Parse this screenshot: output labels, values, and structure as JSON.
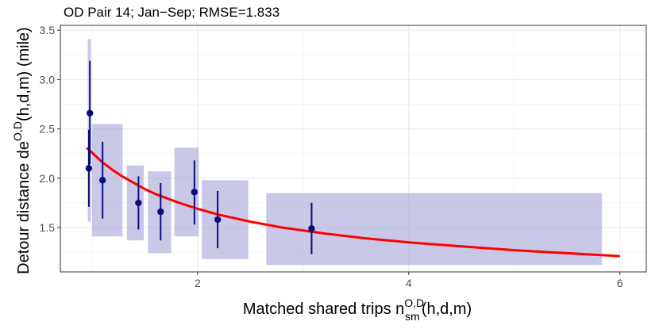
{
  "chart_data": {
    "type": "scatter",
    "title": "OD Pair 14; Jan−Sep; RMSE=1.833",
    "xlabel": {
      "main": "Matched shared trips n",
      "sup": "O,D",
      "sub": "sm",
      "suffix": "(h,d,m)"
    },
    "ylabel": {
      "main": "Detour distance de",
      "sup": "O,D",
      "suffix": "(h,d,m) (mile)"
    },
    "xlim": [
      0.7,
      6.25
    ],
    "ylim": [
      1.05,
      3.55
    ],
    "x_ticks": [
      2,
      4,
      6
    ],
    "x_tick_labels": [
      "2",
      "4",
      "6"
    ],
    "y_ticks": [
      1.5,
      2.0,
      2.5,
      3.0,
      3.5
    ],
    "y_tick_labels": [
      "1.5",
      "2.0",
      "2.5",
      "3.0",
      "3.5"
    ],
    "grid": true,
    "legend": "none",
    "points": [
      {
        "x": 0.97,
        "y": 2.1,
        "err_low": 1.71,
        "err_high": 2.49
      },
      {
        "x": 0.98,
        "y": 2.66,
        "err_low": 2.14,
        "err_high": 3.19
      },
      {
        "x": 1.1,
        "y": 1.98,
        "err_low": 1.59,
        "err_high": 2.37
      },
      {
        "x": 1.44,
        "y": 1.75,
        "err_low": 1.48,
        "err_high": 2.02
      },
      {
        "x": 1.65,
        "y": 1.66,
        "err_low": 1.37,
        "err_high": 1.95
      },
      {
        "x": 1.97,
        "y": 1.86,
        "err_low": 1.53,
        "err_high": 2.18
      },
      {
        "x": 2.19,
        "y": 1.58,
        "err_low": 1.29,
        "err_high": 1.87
      },
      {
        "x": 3.08,
        "y": 1.49,
        "err_low": 1.23,
        "err_high": 1.75
      }
    ],
    "boxes": [
      {
        "x0": 0.96,
        "x1": 0.99,
        "y0": 1.56,
        "y1": 3.41
      },
      {
        "x0": 1.0,
        "x1": 1.29,
        "y0": 1.41,
        "y1": 2.55
      },
      {
        "x0": 1.33,
        "x1": 1.49,
        "y0": 1.37,
        "y1": 2.13
      },
      {
        "x0": 1.53,
        "x1": 1.75,
        "y0": 1.24,
        "y1": 2.07
      },
      {
        "x0": 1.78,
        "x1": 2.01,
        "y0": 1.41,
        "y1": 2.31
      },
      {
        "x0": 2.04,
        "x1": 2.48,
        "y0": 1.18,
        "y1": 1.98
      },
      {
        "x0": 2.65,
        "x1": 5.83,
        "y0": 1.12,
        "y1": 1.85
      }
    ],
    "fit_curve": {
      "x": [
        0.95,
        1.0,
        1.1,
        1.2,
        1.3,
        1.4,
        1.5,
        1.6,
        1.8,
        2.0,
        2.2,
        2.5,
        2.8,
        3.2,
        3.6,
        4.0,
        4.5,
        5.0,
        5.5,
        6.0
      ],
      "y": [
        2.31,
        2.26,
        2.16,
        2.08,
        2.01,
        1.95,
        1.89,
        1.84,
        1.76,
        1.69,
        1.63,
        1.56,
        1.5,
        1.44,
        1.39,
        1.35,
        1.31,
        1.27,
        1.24,
        1.21
      ]
    },
    "colors": {
      "point": "#0b0b7f",
      "box": "#9c9cd4",
      "fit": "#ff0000",
      "grid_major": "#ebebeb",
      "grid_minor": "#f5f5f5",
      "panel_border": "#333333",
      "tick_text": "#4d4d4d"
    }
  }
}
